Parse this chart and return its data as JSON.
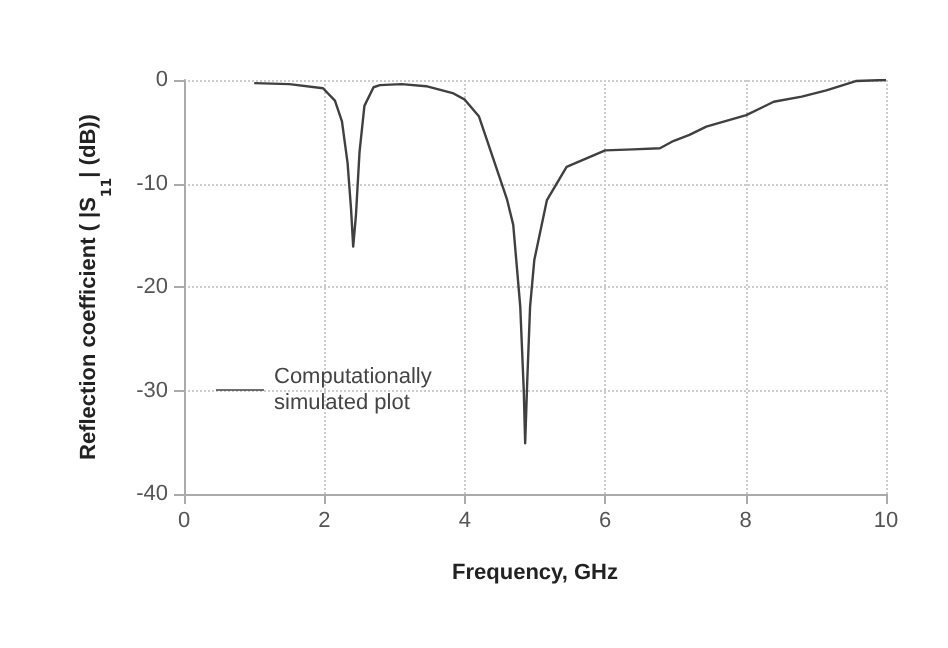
{
  "chart_data": {
    "type": "line",
    "xlabel": "Frequency, GHz",
    "ylabel": "Reflection coefficient ( |S$_{11}$| (dB))",
    "series": [
      {
        "name": "Computationally simulated plot",
        "color": "#404040",
        "x": [
          1.0,
          1.5,
          1.98,
          2.15,
          2.25,
          2.33,
          2.38,
          2.41,
          2.45,
          2.5,
          2.57,
          2.7,
          2.79,
          3.1,
          3.45,
          3.84,
          4.0,
          4.2,
          4.41,
          4.6,
          4.69,
          4.79,
          4.84,
          4.86,
          4.89,
          4.93,
          4.99,
          5.17,
          5.45,
          6.0,
          6.4,
          6.78,
          6.97,
          7.2,
          7.44,
          7.7,
          8.01,
          8.4,
          8.8,
          9.15,
          9.57,
          10.0
        ],
        "values": [
          -0.3,
          -0.4,
          -0.8,
          -2.0,
          -4.0,
          -8.0,
          -12.5,
          -16.1,
          -13.0,
          -7.0,
          -2.5,
          -0.7,
          -0.5,
          -0.4,
          -0.6,
          -1.3,
          -1.9,
          -3.5,
          -7.7,
          -11.5,
          -14.0,
          -21.9,
          -30.0,
          -35.1,
          -29.0,
          -21.9,
          -17.4,
          -11.6,
          -8.4,
          -6.8,
          -6.7,
          -6.6,
          -5.9,
          -5.3,
          -4.5,
          -4.0,
          -3.4,
          -2.1,
          -1.6,
          -1.0,
          -0.1,
          0
        ]
      }
    ],
    "xlim": [
      0,
      10
    ],
    "xticks": [
      0,
      2,
      4,
      6,
      8,
      10
    ],
    "ylim": [
      -40,
      0
    ],
    "yticks": [
      -40,
      -30,
      -20,
      -10,
      0
    ],
    "grid": true,
    "legend": "left",
    "marker": "none",
    "line_style": "solid"
  }
}
